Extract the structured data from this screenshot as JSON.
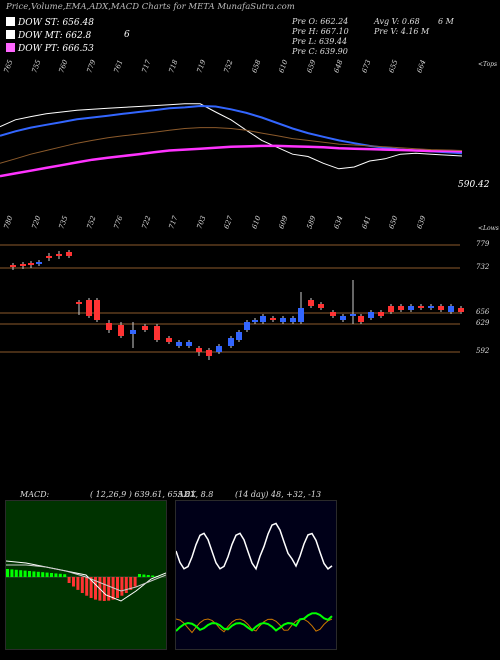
{
  "header": {
    "title": "Price,Volume,EMA,ADX,MACD Charts for META MunafaSutra.com"
  },
  "legend": {
    "dow_st": "DOW ST: 656.48",
    "dow_mt": "DOW MT: 662.8",
    "dow_mt_extra": "6",
    "dow_pt": "DOW PT: 666.53",
    "colors": {
      "st": "#ffffff",
      "mt": "#ffffff",
      "pt": "#ff66ff"
    }
  },
  "ohlc": {
    "open": "Pre O: 662.24",
    "high": "Pre H: 667.10",
    "low": "Pre L: 639.44",
    "close": "Pre C: 639.90",
    "avg_v": "Avg V: 0.68",
    "avg_v_unit": "6 M",
    "pre_v": "Pre V: 4.16 M"
  },
  "price_panel": {
    "top_label": "<Tops",
    "top_values": [
      "765",
      "755",
      "760",
      "779",
      "761",
      "717",
      "718",
      "719",
      "752",
      "658",
      "610",
      "659",
      "648",
      "673",
      "655",
      "664"
    ],
    "last_value": "590.42",
    "lows_label": "<Lows",
    "low_values": [
      "780",
      "720",
      "735",
      "752",
      "776",
      "722",
      "717",
      "703",
      "627",
      "610",
      "609",
      "589",
      "634",
      "641",
      "650",
      "639"
    ]
  },
  "candle_panel": {
    "levels": [
      "779",
      "732",
      "656",
      "629",
      "592"
    ]
  },
  "macd": {
    "label": "MACD:",
    "values": "( 12,26,9 ) 639.61, 655.81, 8.8"
  },
  "adx": {
    "label": "ADX",
    "values": "(14 day) 48, +32, -13"
  },
  "chart_data": [
    {
      "type": "line",
      "title": "",
      "series": [
        {
          "name": "DOW ST",
          "values": [
            720,
            735,
            742,
            748,
            752,
            756,
            758,
            760,
            762,
            764,
            766,
            768,
            770,
            770,
            752,
            735,
            712,
            690,
            675,
            660,
            655,
            640,
            628,
            632,
            645,
            650,
            660,
            662,
            660,
            658,
            656
          ]
        },
        {
          "name": "DOW MT",
          "values": [
            700,
            710,
            718,
            724,
            730,
            736,
            740,
            744,
            748,
            752,
            756,
            760,
            762,
            765,
            764,
            758,
            750,
            740,
            728,
            716,
            706,
            698,
            690,
            684,
            678,
            674,
            670,
            668,
            666,
            664,
            662
          ]
        },
        {
          "name": "DOW PT",
          "values": [
            612,
            618,
            624,
            630,
            636,
            642,
            648,
            652,
            656,
            660,
            664,
            668,
            670,
            672,
            674,
            676,
            677,
            678,
            678,
            677,
            676,
            675,
            673,
            672,
            671,
            670,
            669,
            668,
            667,
            667,
            666
          ]
        }
      ],
      "last_value": 590.42
    },
    {
      "type": "candlestick",
      "title": "",
      "levels": [
        779,
        732,
        656,
        629,
        592
      ]
    },
    {
      "type": "line",
      "title": "MACD",
      "series": [
        {
          "name": "MACD",
          "values": [
            639.61
          ]
        },
        {
          "name": "Signal",
          "values": [
            655.81
          ]
        },
        {
          "name": "Histogram",
          "values": [
            8.8
          ]
        }
      ]
    },
    {
      "type": "line",
      "title": "ADX",
      "series": [
        {
          "name": "ADX",
          "values": [
            48
          ]
        },
        {
          "name": "+DI",
          "values": [
            32
          ]
        },
        {
          "name": "-DI",
          "values": [
            13
          ]
        }
      ]
    }
  ]
}
